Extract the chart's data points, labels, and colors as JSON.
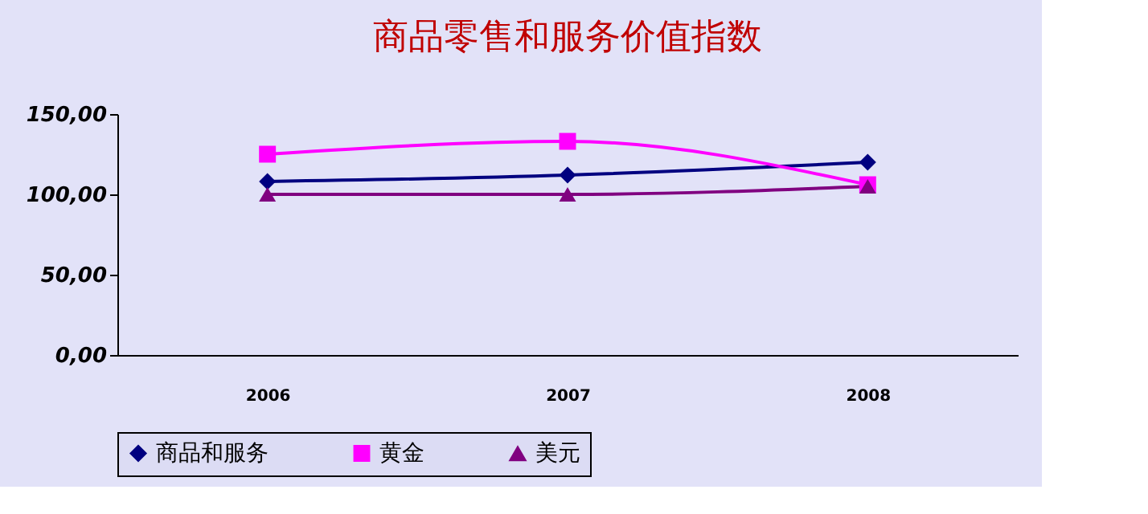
{
  "chart_data": {
    "type": "line",
    "title": "商品零售和服务价值指数",
    "categories": [
      "2006",
      "2007",
      "2008"
    ],
    "series": [
      {
        "name": "商品和服务",
        "color": "#000080",
        "marker": "diamond",
        "values": [
          108,
          112,
          120
        ]
      },
      {
        "name": "黄金",
        "color": "#ff00ff",
        "marker": "square",
        "values": [
          125,
          133,
          106
        ]
      },
      {
        "name": "美元",
        "color": "#800080",
        "marker": "triangle",
        "values": [
          100,
          100,
          105
        ]
      }
    ],
    "ylim": [
      0,
      150
    ],
    "yticks": [
      {
        "value": 0,
        "label": "0,00"
      },
      {
        "value": 50,
        "label": "50,00"
      },
      {
        "value": 100,
        "label": "100,00"
      },
      {
        "value": 150,
        "label": "150,00"
      }
    ],
    "grid": false,
    "legend": "bottom",
    "line_style": "solid"
  }
}
